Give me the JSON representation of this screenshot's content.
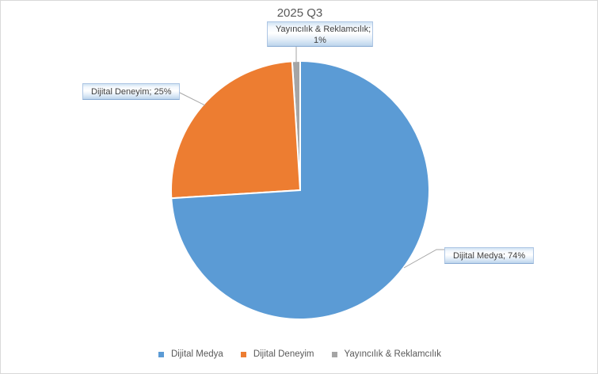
{
  "chart_data": {
    "type": "pie",
    "title": "2025 Q3",
    "categories": [
      "Dijital Medya",
      "Dijital Deneyim",
      "Yayıncılık & Reklamcılık"
    ],
    "values": [
      74,
      25,
      1
    ],
    "unit": "%",
    "colors": [
      "#5B9BD5",
      "#ED7D31",
      "#A5A5A5"
    ],
    "start_angle_deg": 0,
    "direction": "clockwise",
    "legend_position": "bottom",
    "data_labels": [
      "Dijital Medya; 74%",
      "Dijital Deneyim; 25%",
      "Yayıncılık & Reklamcılık; 1%"
    ]
  },
  "labels": {
    "medya": "Dijital Medya; 74%",
    "deneyim": "Dijital Deneyim; 25%",
    "yayincilik_line1": "Yayıncılık & Reklamcılık;",
    "yayincilik_line2": "1%"
  },
  "legend": {
    "items": [
      {
        "label": "Dijital Medya",
        "color": "#5B9BD5"
      },
      {
        "label": "Dijital Deneyim",
        "color": "#ED7D31"
      },
      {
        "label": "Yayıncılık & Reklamcılık",
        "color": "#A5A5A5"
      }
    ]
  },
  "style": {
    "leader_line_color": "#a6a6a6",
    "border_color": "#d9d9d9",
    "title_color": "#595959"
  }
}
